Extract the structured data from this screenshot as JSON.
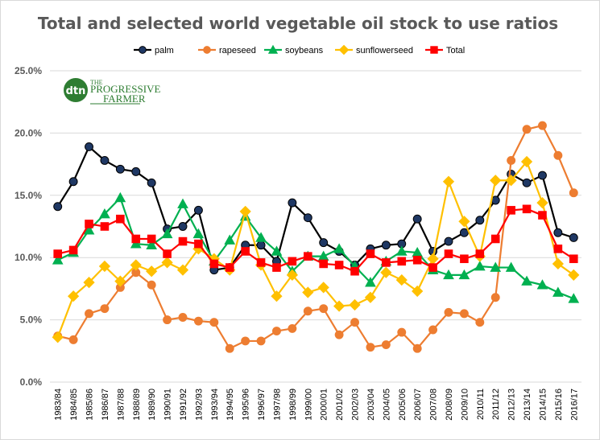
{
  "chart_data": {
    "type": "line",
    "title": "Total and selected world vegetable oil stock to use ratios",
    "xlabel": "",
    "ylabel": "",
    "ylim": [
      0,
      25
    ],
    "y_ticks": [
      "0.0%",
      "5.0%",
      "10.0%",
      "15.0%",
      "20.0%",
      "25.0%"
    ],
    "y_tick_values": [
      0,
      5,
      10,
      15,
      20,
      25
    ],
    "grid": true,
    "legend_position": "top",
    "categories": [
      "1983/84",
      "1984/85",
      "1985/86",
      "1986/87",
      "1987/88",
      "1988/89",
      "1989/90",
      "1990/91",
      "1991/92",
      "1992/93",
      "1993/94",
      "1994/95",
      "1995/96",
      "1996/97",
      "1997/98",
      "1998/99",
      "1999/00",
      "2000/01",
      "2001/02",
      "2002/03",
      "2003/04",
      "2004/05",
      "2005/06",
      "2006/07",
      "2007/08",
      "2008/09",
      "2009/10",
      "2010/11",
      "2011/12",
      "2012/13",
      "2013/14",
      "2014/15",
      "2015/16",
      "2016/17"
    ],
    "series": [
      {
        "name": "palm",
        "color": "#000000",
        "fill": "#1f3864",
        "marker": "circle",
        "values": [
          14.1,
          16.1,
          18.9,
          17.8,
          17.1,
          16.9,
          16.0,
          12.3,
          12.5,
          13.8,
          9.0,
          9.2,
          11.0,
          11.0,
          9.7,
          14.4,
          13.2,
          11.2,
          10.5,
          9.4,
          10.7,
          11.0,
          11.1,
          13.1,
          10.5,
          11.3,
          12.0,
          13.0,
          14.6,
          16.7,
          16.0,
          16.6,
          12.0,
          11.6
        ]
      },
      {
        "name": "rapeseed",
        "color": "#ed7d31",
        "fill": "#ed7d31",
        "marker": "circle",
        "values": [
          3.7,
          3.4,
          5.5,
          5.9,
          7.6,
          8.8,
          7.8,
          5.0,
          5.2,
          4.9,
          4.8,
          2.7,
          3.3,
          3.3,
          4.1,
          4.3,
          5.7,
          5.9,
          3.8,
          4.8,
          2.8,
          3.0,
          4.0,
          2.7,
          4.2,
          5.6,
          5.5,
          4.8,
          6.8,
          17.8,
          20.3,
          20.6,
          18.2,
          15.2
        ]
      },
      {
        "name": "soybeans",
        "color": "#00b050",
        "fill": "#00b050",
        "marker": "triangle",
        "values": [
          9.8,
          10.4,
          12.2,
          13.5,
          14.8,
          11.1,
          11.0,
          11.9,
          14.3,
          11.9,
          9.7,
          11.4,
          13.3,
          11.6,
          10.5,
          8.9,
          10.1,
          10.1,
          10.7,
          9.3,
          8.0,
          9.7,
          10.5,
          10.4,
          9.0,
          8.6,
          8.6,
          9.3,
          9.2,
          9.2,
          8.1,
          7.8,
          7.2,
          6.7
        ]
      },
      {
        "name": "sunflowerseed",
        "color": "#ffc000",
        "fill": "#ffc000",
        "marker": "diamond",
        "values": [
          3.6,
          6.9,
          8.0,
          9.3,
          8.1,
          9.4,
          8.9,
          9.6,
          9.0,
          10.7,
          9.9,
          9.0,
          13.7,
          9.4,
          6.9,
          8.6,
          7.2,
          7.6,
          6.1,
          6.2,
          6.8,
          8.8,
          8.2,
          7.3,
          9.9,
          16.1,
          12.9,
          10.1,
          16.2,
          16.2,
          17.7,
          14.4,
          9.5,
          8.6
        ]
      },
      {
        "name": "Total",
        "color": "#ff0000",
        "fill": "#ff0000",
        "marker": "square",
        "values": [
          10.3,
          10.6,
          12.7,
          12.5,
          13.1,
          11.5,
          11.5,
          10.3,
          11.3,
          11.1,
          9.5,
          9.2,
          10.5,
          9.6,
          9.2,
          9.7,
          10.1,
          9.5,
          9.4,
          8.9,
          10.3,
          9.6,
          9.7,
          9.8,
          9.2,
          10.3,
          9.9,
          10.3,
          11.5,
          13.8,
          13.9,
          13.4,
          10.7,
          9.9
        ]
      }
    ]
  },
  "logo": {
    "mark": "dtn",
    "line1": "THE",
    "line2": "PROGRESSIVE",
    "line3": "FARMER"
  }
}
